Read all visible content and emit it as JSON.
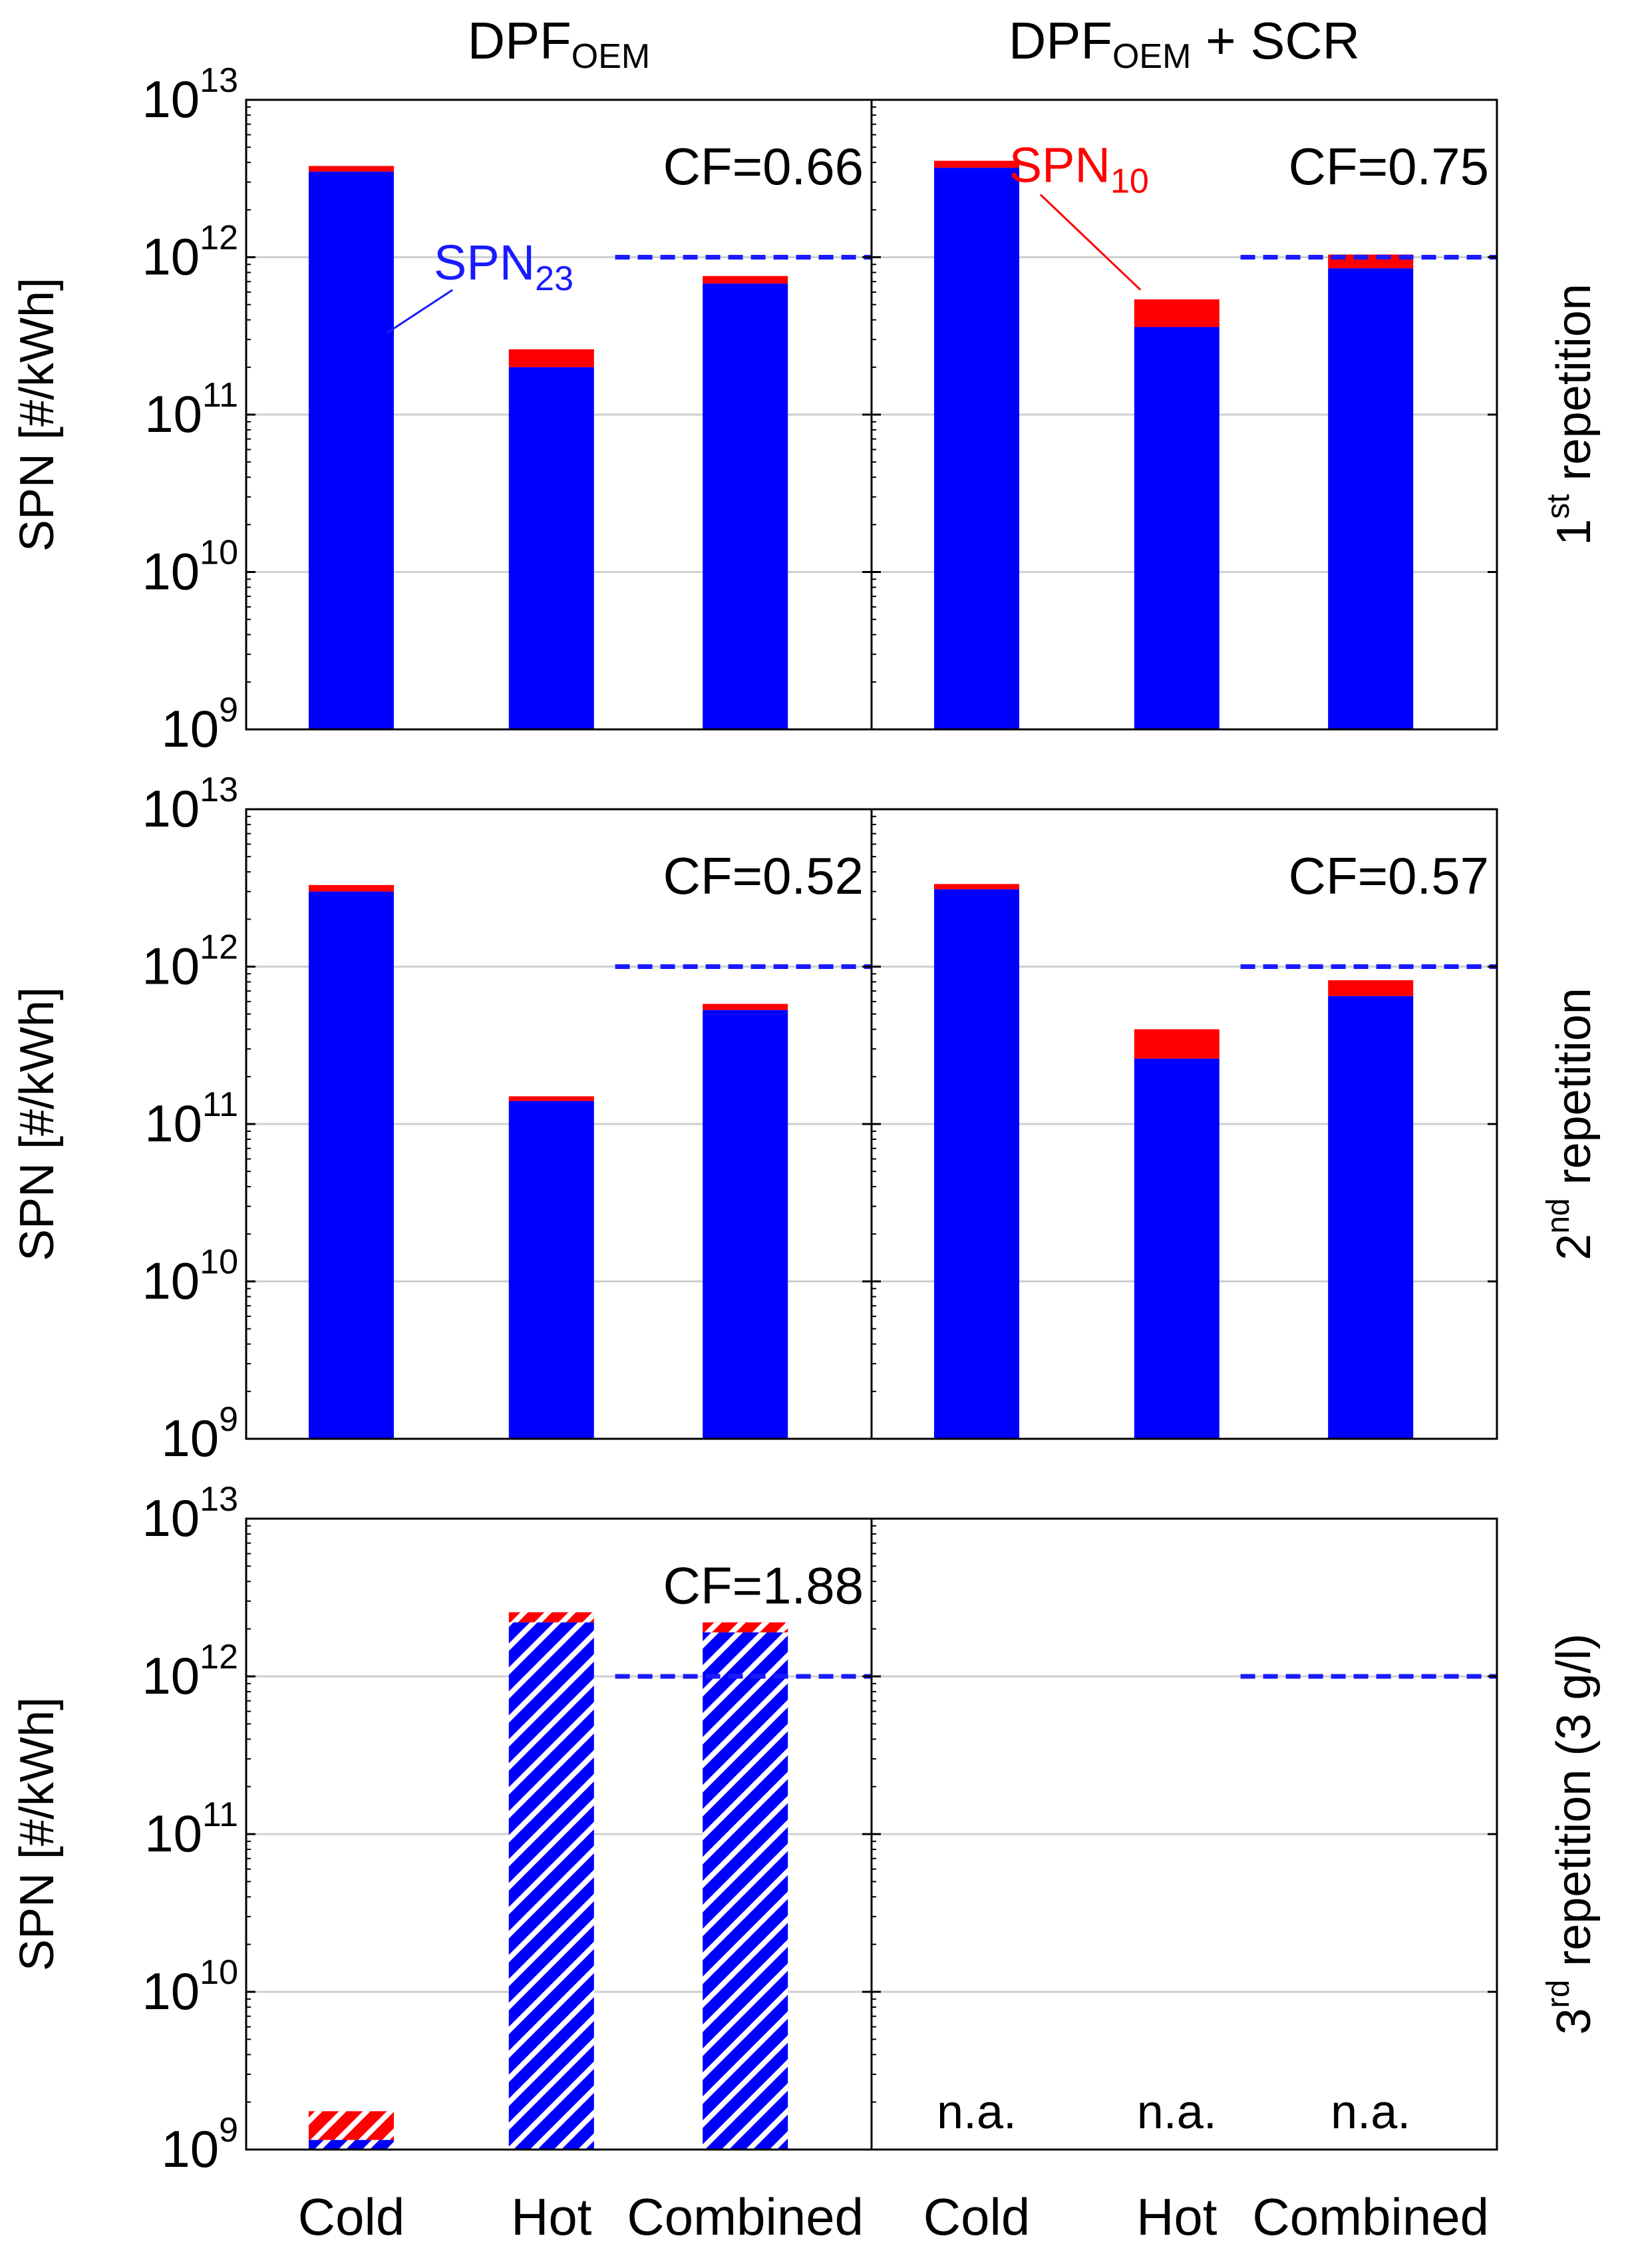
{
  "chart_data": {
    "type": "bar",
    "stacked": true,
    "scale": "log",
    "ylim": [
      1000000000.0,
      10000000000000.0
    ],
    "ylabel": "SPN [#/kWh]",
    "y_ticks": [
      {
        "value": 1000000000.0,
        "base": "10",
        "exp": "9"
      },
      {
        "value": 10000000000.0,
        "base": "10",
        "exp": "10"
      },
      {
        "value": 100000000000.0,
        "base": "10",
        "exp": "11"
      },
      {
        "value": 1000000000000.0,
        "base": "10",
        "exp": "12"
      },
      {
        "value": 10000000000000.0,
        "base": "10",
        "exp": "13"
      }
    ],
    "categories": [
      "Cold",
      "Hot",
      "Combined"
    ],
    "columns": [
      {
        "title_main": "DPF",
        "title_sub": "OEM",
        "title_suffix": ""
      },
      {
        "title_main": "DPF",
        "title_sub": "OEM",
        "title_suffix": " + SCR"
      }
    ],
    "limit_line": {
      "value": 1000000000000.0,
      "color": "#1a1aff",
      "over": "Combined"
    },
    "legend_annotations": [
      {
        "text": "SPN",
        "sub": "23",
        "color": "#1a1aff",
        "row": 0,
        "col": 0,
        "points_to": "Cold"
      },
      {
        "text": "SPN",
        "sub": "10",
        "color": "#ff0000",
        "row": 0,
        "col": 1,
        "points_to": "Hot"
      }
    ],
    "series_colors": {
      "SPN23": "#0000ff",
      "SPN10": "#ff0000",
      "hatch": "#ffffff"
    },
    "rows": [
      {
        "label_prefix": "1",
        "label_sup": "st",
        "label_suffix": " repetition",
        "panels": [
          {
            "cf": "CF=0.66",
            "hatched": false,
            "bars": [
              {
                "category": "Cold",
                "spn23": 3500000000000.0,
                "spn10": 3800000000000.0
              },
              {
                "category": "Hot",
                "spn23": 200000000000.0,
                "spn10": 260000000000.0
              },
              {
                "category": "Combined",
                "spn23": 680000000000.0,
                "spn10": 760000000000.0
              }
            ]
          },
          {
            "cf": "CF=0.75",
            "hatched": false,
            "bars": [
              {
                "category": "Cold",
                "spn23": 3700000000000.0,
                "spn10": 4100000000000.0
              },
              {
                "category": "Hot",
                "spn23": 360000000000.0,
                "spn10": 540000000000.0
              },
              {
                "category": "Combined",
                "spn23": 850000000000.0,
                "spn10": 1040000000000.0
              }
            ]
          }
        ]
      },
      {
        "label_prefix": "2",
        "label_sup": "nd",
        "label_suffix": " repetition",
        "panels": [
          {
            "cf": "CF=0.52",
            "hatched": false,
            "bars": [
              {
                "category": "Cold",
                "spn23": 3000000000000.0,
                "spn10": 3300000000000.0
              },
              {
                "category": "Hot",
                "spn23": 140000000000.0,
                "spn10": 150000000000.0
              },
              {
                "category": "Combined",
                "spn23": 530000000000.0,
                "spn10": 580000000000.0
              }
            ]
          },
          {
            "cf": "CF=0.57",
            "hatched": false,
            "bars": [
              {
                "category": "Cold",
                "spn23": 3100000000000.0,
                "spn10": 3350000000000.0
              },
              {
                "category": "Hot",
                "spn23": 260000000000.0,
                "spn10": 400000000000.0
              },
              {
                "category": "Combined",
                "spn23": 650000000000.0,
                "spn10": 820000000000.0
              }
            ]
          }
        ]
      },
      {
        "label_prefix": "3",
        "label_sup": "rd",
        "label_suffix": " repetition (3 g/l)",
        "panels": [
          {
            "cf": "CF=1.88",
            "hatched": true,
            "bars": [
              {
                "category": "Cold",
                "spn23": 1150000000.0,
                "spn10": 1750000000.0
              },
              {
                "category": "Hot",
                "spn23": 2200000000000.0,
                "spn10": 2550000000000.0
              },
              {
                "category": "Combined",
                "spn23": 1900000000000.0,
                "spn10": 2200000000000.0
              }
            ]
          },
          {
            "cf": "",
            "hatched": false,
            "bars": [
              {
                "category": "Cold",
                "na": "n.a."
              },
              {
                "category": "Hot",
                "na": "n.a."
              },
              {
                "category": "Combined",
                "na": "n.a."
              }
            ]
          }
        ]
      }
    ]
  }
}
